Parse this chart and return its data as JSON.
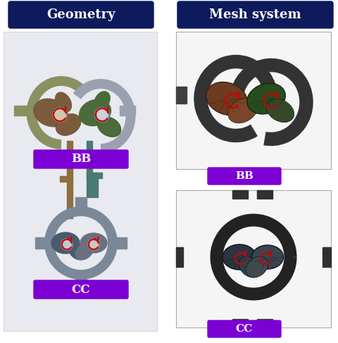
{
  "title_geometry": "Geometry",
  "title_mesh": "Mesh system",
  "label_bb": "BB",
  "label_cc": "CC",
  "title_bg_color": "#0d1a5c",
  "title_text_color": "#ffffff",
  "label_bg_color": "#7b00d4",
  "label_text_color": "#ffffff",
  "panel_bg_color": "#e8eaf0",
  "fig_bg_color": "#ffffff",
  "arrow_color": "#cc0000",
  "bb_rotor1_color": "#7a5c3c",
  "bb_rotor2_color": "#4a6b3a",
  "bb_housing1_color": "#8b9060",
  "bb_housing2_color": "#9aa0b0",
  "cc_rotor1_color": "#4a5c6b",
  "cc_rotor2_color": "#6a7080",
  "cc_housing_color": "#7a8898"
}
